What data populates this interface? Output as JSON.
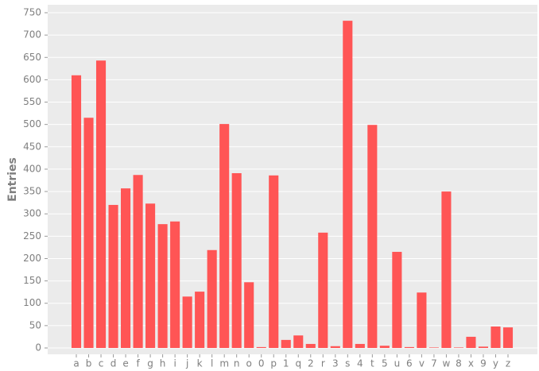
{
  "chart_data": {
    "type": "bar",
    "y_label": "Entries",
    "categories": [
      "a",
      "b",
      "c",
      "d",
      "e",
      "f",
      "g",
      "h",
      "i",
      "j",
      "k",
      "l",
      "m",
      "n",
      "o",
      "0",
      "p",
      "1",
      "q",
      "2",
      "r",
      "3",
      "s",
      "4",
      "t",
      "5",
      "u",
      "6",
      "v",
      "7",
      "w",
      "8",
      "x",
      "9",
      "y",
      "z"
    ],
    "values": [
      610,
      515,
      643,
      320,
      357,
      387,
      323,
      277,
      283,
      115,
      126,
      219,
      501,
      391,
      147,
      2,
      386,
      18,
      28,
      9,
      258,
      4,
      732,
      9,
      499,
      5,
      215,
      2,
      124,
      1,
      350,
      1,
      25,
      3,
      48,
      46
    ],
    "color": "#ff5555",
    "ylim": [
      0,
      750
    ],
    "yticks": [
      0,
      50,
      100,
      150,
      200,
      250,
      300,
      350,
      400,
      450,
      500,
      550,
      600,
      650,
      700,
      750
    ],
    "grid": true
  }
}
